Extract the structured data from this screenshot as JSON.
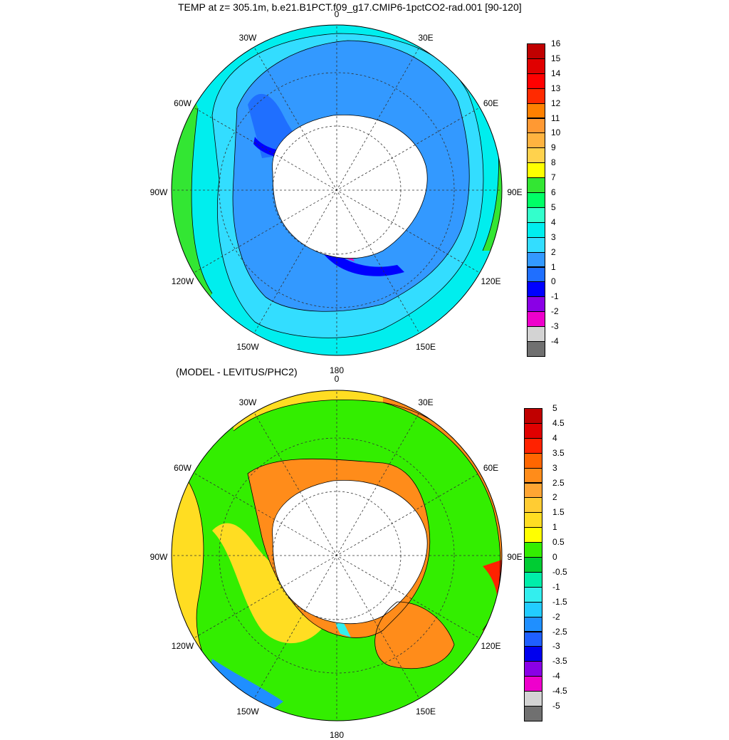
{
  "panels": [
    {
      "title": "TEMP at z= 305.1m, b.e21.B1PCT.f09_g17.CMIP6-1pctCO2-rad.001 [90-120]",
      "lon_labels": [
        "0",
        "30E",
        "60E",
        "90E",
        "120E",
        "150E",
        "180",
        "150W",
        "120W",
        "90W",
        "60W",
        "30W"
      ],
      "colorbar": {
        "labels": [
          "16",
          "15",
          "14",
          "13",
          "12",
          "11",
          "10",
          "9",
          "8",
          "7",
          "6",
          "5",
          "4",
          "3",
          "2",
          "1",
          "0",
          "-1",
          "-2",
          "-3",
          "-4"
        ],
        "colors": [
          "#c00000",
          "#e00000",
          "#ff0000",
          "#ff2a00",
          "#ff8000",
          "#ff9933",
          "#ffb340",
          "#ffd24d",
          "#ffff00",
          "#33e633",
          "#00ff66",
          "#33ffcc",
          "#00eeee",
          "#33ddff",
          "#3399ff",
          "#1f6fff",
          "#0000ff",
          "#8a00e6",
          "#ee00cc",
          "#d3d3d3",
          "#707070"
        ]
      }
    },
    {
      "title": "(MODEL - LEVITUS/PHC2)",
      "lon_labels": [
        "0",
        "30E",
        "60E",
        "90E",
        "120E",
        "150E",
        "180",
        "150W",
        "120W",
        "90W",
        "60W",
        "30W"
      ],
      "colorbar": {
        "labels": [
          "5",
          "4.5",
          "4",
          "3.5",
          "3",
          "2.5",
          "2",
          "1.5",
          "1",
          "0.5",
          "0",
          "-0.5",
          "-1",
          "-1.5",
          "-2",
          "-2.5",
          "-3",
          "-3.5",
          "-4",
          "-4.5",
          "-5"
        ],
        "colors": [
          "#c00000",
          "#e00000",
          "#ff2200",
          "#ff6600",
          "#ff8c1a",
          "#ffa533",
          "#ffcc33",
          "#ffdd22",
          "#ffff00",
          "#33ee00",
          "#00cc33",
          "#00eeaa",
          "#33eeee",
          "#22ccff",
          "#1f8fff",
          "#1f5fff",
          "#0000ee",
          "#8a00e6",
          "#ee00cc",
          "#d3d3d3",
          "#707070"
        ]
      }
    }
  ]
}
